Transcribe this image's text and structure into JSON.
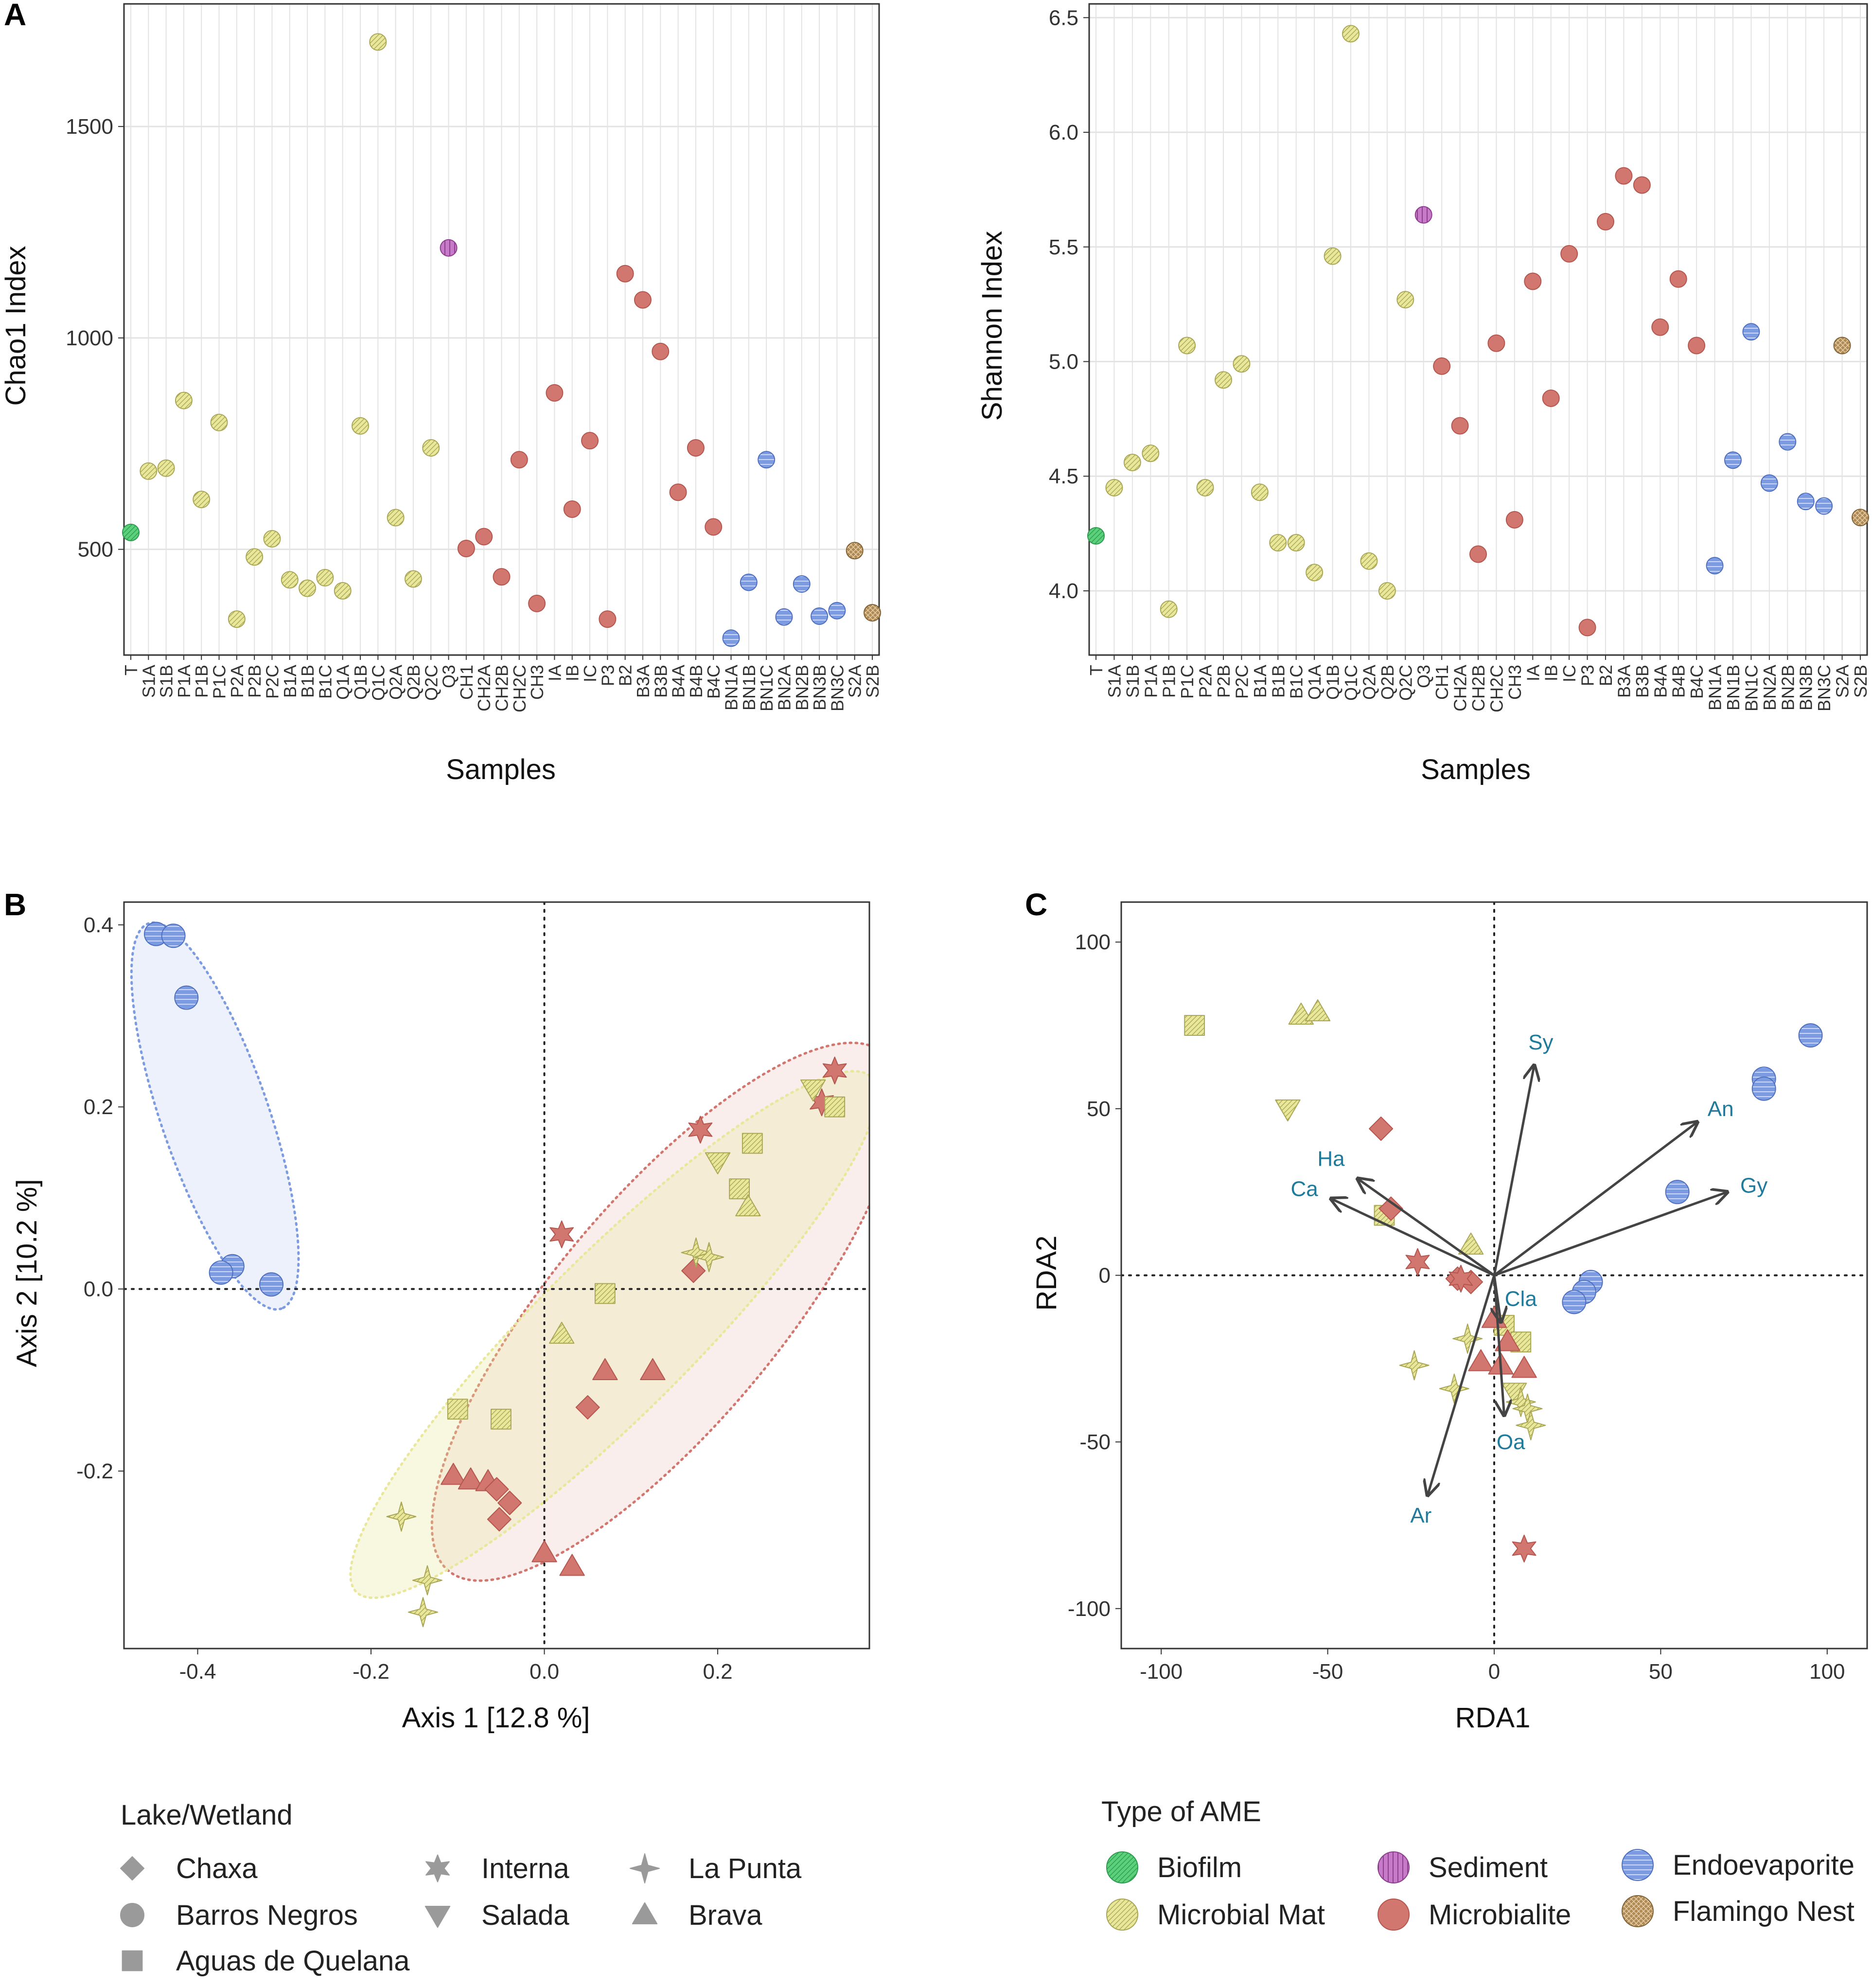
{
  "colors": {
    "Biofilm": "#5bd17c",
    "Microbial Mat": "#e9e79a",
    "Sediment": "#c77ac8",
    "Microbialite": "#d2776f",
    "Endoevaporite": "#7d9be0",
    "Flamingo Nest": "#b08a55",
    "shape_gray": "#9a9a9a",
    "arrow": "#444444",
    "vector_label": "#1f7a9c"
  },
  "labels": {
    "panel_a": "A",
    "panel_b": "B",
    "panel_c": "C"
  },
  "chart_data": [
    {
      "id": "chao1",
      "type": "scatter",
      "title": "",
      "xlabel": "Samples",
      "ylabel": "Chao1 Index",
      "ylim": [
        250,
        1790
      ],
      "yticks": [
        500,
        1000,
        1500
      ],
      "categories": [
        "T",
        "S1A",
        "S1B",
        "P1A",
        "P1B",
        "P1C",
        "P2A",
        "P2B",
        "P2C",
        "B1A",
        "B1B",
        "B1C",
        "Q1A",
        "Q1B",
        "Q1C",
        "Q2A",
        "Q2B",
        "Q2C",
        "Q3",
        "CH1",
        "CH2A",
        "CH2B",
        "CH2C",
        "CH3",
        "IA",
        "IB",
        "IC",
        "P3",
        "B2",
        "B3A",
        "B3B",
        "B4A",
        "B4B",
        "B4C",
        "BN1A",
        "BN1B",
        "BN1C",
        "BN2A",
        "BN2B",
        "BN3B",
        "BN3C",
        "S2A",
        "S2B"
      ],
      "values": [
        540,
        685,
        692,
        852,
        618,
        800,
        335,
        482,
        525,
        428,
        408,
        433,
        402,
        792,
        1700,
        575,
        430,
        740,
        1213,
        502,
        530,
        435,
        712,
        372,
        870,
        595,
        757,
        335,
        1152,
        1090,
        968,
        635,
        740,
        553,
        290,
        422,
        712,
        340,
        418,
        342,
        355,
        497,
        350
      ],
      "types": [
        "Biofilm",
        "Microbial Mat",
        "Microbial Mat",
        "Microbial Mat",
        "Microbial Mat",
        "Microbial Mat",
        "Microbial Mat",
        "Microbial Mat",
        "Microbial Mat",
        "Microbial Mat",
        "Microbial Mat",
        "Microbial Mat",
        "Microbial Mat",
        "Microbial Mat",
        "Microbial Mat",
        "Microbial Mat",
        "Microbial Mat",
        "Microbial Mat",
        "Sediment",
        "Microbialite",
        "Microbialite",
        "Microbialite",
        "Microbialite",
        "Microbialite",
        "Microbialite",
        "Microbialite",
        "Microbialite",
        "Microbialite",
        "Microbialite",
        "Microbialite",
        "Microbialite",
        "Microbialite",
        "Microbialite",
        "Microbialite",
        "Endoevaporite",
        "Endoevaporite",
        "Endoevaporite",
        "Endoevaporite",
        "Endoevaporite",
        "Endoevaporite",
        "Endoevaporite",
        "Flamingo Nest",
        "Flamingo Nest"
      ]
    },
    {
      "id": "shannon",
      "type": "scatter",
      "title": "",
      "xlabel": "Samples",
      "ylabel": "Shannon Index",
      "ylim": [
        3.72,
        6.56
      ],
      "yticks": [
        4.0,
        4.5,
        5.0,
        5.5,
        6.0,
        6.5
      ],
      "ytick_labels": [
        "4.0",
        "4.5",
        "5.0",
        "5.5",
        "6.0",
        "6.5"
      ],
      "categories": [
        "T",
        "S1A",
        "S1B",
        "P1A",
        "P1B",
        "P1C",
        "P2A",
        "P2B",
        "P2C",
        "B1A",
        "B1B",
        "B1C",
        "Q1A",
        "Q1B",
        "Q1C",
        "Q2A",
        "Q2B",
        "Q2C",
        "Q3",
        "CH1",
        "CH2A",
        "CH2B",
        "CH2C",
        "CH3",
        "IA",
        "IB",
        "IC",
        "P3",
        "B2",
        "B3A",
        "B3B",
        "B4A",
        "B4B",
        "B4C",
        "BN1A",
        "BN1B",
        "BN1C",
        "BN2A",
        "BN2B",
        "BN3B",
        "BN3C",
        "S2A",
        "S2B"
      ],
      "values": [
        4.24,
        4.45,
        4.56,
        4.6,
        3.92,
        5.07,
        4.45,
        4.92,
        4.99,
        4.43,
        4.21,
        4.21,
        4.08,
        5.46,
        6.43,
        4.13,
        4.0,
        5.27,
        5.64,
        4.98,
        4.72,
        4.16,
        5.08,
        4.31,
        5.35,
        4.84,
        5.47,
        3.84,
        5.61,
        5.81,
        5.77,
        5.15,
        5.36,
        5.07,
        4.11,
        4.57,
        5.13,
        4.47,
        4.65,
        4.39,
        4.37,
        5.07,
        4.32
      ],
      "types": [
        "Biofilm",
        "Microbial Mat",
        "Microbial Mat",
        "Microbial Mat",
        "Microbial Mat",
        "Microbial Mat",
        "Microbial Mat",
        "Microbial Mat",
        "Microbial Mat",
        "Microbial Mat",
        "Microbial Mat",
        "Microbial Mat",
        "Microbial Mat",
        "Microbial Mat",
        "Microbial Mat",
        "Microbial Mat",
        "Microbial Mat",
        "Microbial Mat",
        "Sediment",
        "Microbialite",
        "Microbialite",
        "Microbialite",
        "Microbialite",
        "Microbialite",
        "Microbialite",
        "Microbialite",
        "Microbialite",
        "Microbialite",
        "Microbialite",
        "Microbialite",
        "Microbialite",
        "Microbialite",
        "Microbialite",
        "Microbialite",
        "Endoevaporite",
        "Endoevaporite",
        "Endoevaporite",
        "Endoevaporite",
        "Endoevaporite",
        "Endoevaporite",
        "Endoevaporite",
        "Flamingo Nest",
        "Flamingo Nest"
      ]
    },
    {
      "id": "pcoa",
      "type": "scatter",
      "title": "",
      "xlabel": "Axis 1 [12.8 %]",
      "ylabel": "Axis 2 [10.2 %]",
      "xlim": [
        -0.485,
        0.375
      ],
      "ylim": [
        -0.395,
        0.425
      ],
      "xticks": [
        -0.4,
        -0.2,
        0.0,
        0.2
      ],
      "xtick_labels": [
        "-0.4",
        "-0.2",
        "0.0",
        "0.2"
      ],
      "yticks": [
        -0.2,
        0.0,
        0.2,
        0.4
      ],
      "ytick_labels": [
        "-0.2",
        "0.0",
        "0.2",
        "0.4"
      ],
      "ellipses": [
        {
          "group": "Endoevaporite",
          "cx": -0.38,
          "cy": 0.19,
          "rx": 0.235,
          "ry": 0.062,
          "angle": -71
        },
        {
          "group": "Microbialite",
          "cx": 0.14,
          "cy": -0.025,
          "rx": 0.39,
          "ry": 0.13,
          "angle": 50
        },
        {
          "group": "Microbial Mat",
          "cx": 0.08,
          "cy": -0.05,
          "rx": 0.42,
          "ry": 0.09,
          "angle": 45
        }
      ],
      "points": [
        {
          "x": -0.448,
          "y": 0.39,
          "lake": "Barros Negros",
          "type": "Endoevaporite"
        },
        {
          "x": -0.428,
          "y": 0.388,
          "lake": "Barros Negros",
          "type": "Endoevaporite"
        },
        {
          "x": -0.413,
          "y": 0.32,
          "lake": "Barros Negros",
          "type": "Endoevaporite"
        },
        {
          "x": -0.36,
          "y": 0.025,
          "lake": "Barros Negros",
          "type": "Endoevaporite"
        },
        {
          "x": -0.373,
          "y": 0.018,
          "lake": "Barros Negros",
          "type": "Endoevaporite"
        },
        {
          "x": -0.315,
          "y": 0.005,
          "lake": "Barros Negros",
          "type": "Endoevaporite"
        },
        {
          "x": 0.02,
          "y": 0.06,
          "lake": "Interna",
          "type": "Microbialite"
        },
        {
          "x": 0.18,
          "y": 0.175,
          "lake": "Interna",
          "type": "Microbialite"
        },
        {
          "x": 0.32,
          "y": 0.205,
          "lake": "Interna",
          "type": "Microbialite"
        },
        {
          "x": 0.335,
          "y": 0.24,
          "lake": "Interna",
          "type": "Microbialite"
        },
        {
          "x": 0.07,
          "y": -0.005,
          "lake": "Aguas de Quelana",
          "type": "Microbial Mat"
        },
        {
          "x": -0.1,
          "y": -0.132,
          "lake": "Aguas de Quelana",
          "type": "Microbial Mat"
        },
        {
          "x": -0.05,
          "y": -0.143,
          "lake": "Aguas de Quelana",
          "type": "Microbial Mat"
        },
        {
          "x": 0.225,
          "y": 0.11,
          "lake": "Aguas de Quelana",
          "type": "Microbial Mat"
        },
        {
          "x": 0.24,
          "y": 0.16,
          "lake": "Aguas de Quelana",
          "type": "Microbial Mat"
        },
        {
          "x": 0.335,
          "y": 0.2,
          "lake": "Aguas de Quelana",
          "type": "Microbial Mat"
        },
        {
          "x": 0.02,
          "y": -0.05,
          "lake": "Brava",
          "type": "Microbial Mat"
        },
        {
          "x": 0.235,
          "y": 0.09,
          "lake": "Brava",
          "type": "Microbial Mat"
        },
        {
          "x": 0.07,
          "y": -0.09,
          "lake": "Brava",
          "type": "Microbialite"
        },
        {
          "x": 0.125,
          "y": -0.09,
          "lake": "Brava",
          "type": "Microbialite"
        },
        {
          "x": -0.105,
          "y": -0.205,
          "lake": "Brava",
          "type": "Microbialite"
        },
        {
          "x": -0.085,
          "y": -0.21,
          "lake": "Brava",
          "type": "Microbialite"
        },
        {
          "x": -0.065,
          "y": -0.212,
          "lake": "Brava",
          "type": "Microbialite"
        },
        {
          "x": 0.0,
          "y": -0.29,
          "lake": "Brava",
          "type": "Microbialite"
        },
        {
          "x": 0.032,
          "y": -0.305,
          "lake": "Brava",
          "type": "Microbialite"
        },
        {
          "x": 0.05,
          "y": -0.13,
          "lake": "Chaxa",
          "type": "Microbialite"
        },
        {
          "x": 0.172,
          "y": 0.02,
          "lake": "Chaxa",
          "type": "Microbialite"
        },
        {
          "x": -0.055,
          "y": -0.22,
          "lake": "Chaxa",
          "type": "Microbialite"
        },
        {
          "x": -0.04,
          "y": -0.235,
          "lake": "Chaxa",
          "type": "Microbialite"
        },
        {
          "x": -0.052,
          "y": -0.253,
          "lake": "Chaxa",
          "type": "Microbialite"
        },
        {
          "x": 0.2,
          "y": 0.14,
          "lake": "Salada",
          "type": "Microbial Mat"
        },
        {
          "x": 0.31,
          "y": 0.22,
          "lake": "Salada",
          "type": "Microbial Mat"
        },
        {
          "x": 0.175,
          "y": 0.04,
          "lake": "La Punta",
          "type": "Microbial Mat"
        },
        {
          "x": 0.19,
          "y": 0.035,
          "lake": "La Punta",
          "type": "Microbial Mat"
        },
        {
          "x": -0.165,
          "y": -0.25,
          "lake": "La Punta",
          "type": "Microbial Mat"
        },
        {
          "x": -0.135,
          "y": -0.32,
          "lake": "La Punta",
          "type": "Microbial Mat"
        },
        {
          "x": -0.14,
          "y": -0.355,
          "lake": "La Punta",
          "type": "Microbial Mat"
        }
      ]
    },
    {
      "id": "rda",
      "type": "scatter",
      "title": "",
      "xlabel": "RDA1",
      "ylabel": "RDA2",
      "xlim": [
        -112,
        112
      ],
      "ylim": [
        -112,
        112
      ],
      "xticks": [
        -100,
        -50,
        0,
        50,
        100
      ],
      "xtick_labels": [
        "-100",
        "-50",
        "0",
        "50",
        "100"
      ],
      "yticks": [
        -100,
        -50,
        0,
        50,
        100
      ],
      "ytick_labels": [
        "-100",
        "-50",
        "0",
        "50",
        "100"
      ],
      "vectors": [
        {
          "label": "Sy",
          "x": 12,
          "y": 63,
          "lx": 14,
          "ly": 70
        },
        {
          "label": "An",
          "x": 61,
          "y": 46,
          "lx": 68,
          "ly": 50
        },
        {
          "label": "Gy",
          "x": 70,
          "y": 25,
          "lx": 78,
          "ly": 27
        },
        {
          "label": "Ha",
          "x": -41,
          "y": 29,
          "lx": -49,
          "ly": 35
        },
        {
          "label": "Ca",
          "x": -49,
          "y": 23,
          "lx": -57,
          "ly": 26
        },
        {
          "label": "Cla",
          "x": 2,
          "y": -14,
          "lx": 8,
          "ly": -7
        },
        {
          "label": "Oa",
          "x": 3,
          "y": -42,
          "lx": 5,
          "ly": -50
        },
        {
          "label": "Ar",
          "x": -20,
          "y": -66,
          "lx": -22,
          "ly": -72
        }
      ],
      "points": [
        {
          "x": 95,
          "y": 72,
          "lake": "Barros Negros",
          "type": "Endoevaporite"
        },
        {
          "x": 81,
          "y": 59,
          "lake": "Barros Negros",
          "type": "Endoevaporite"
        },
        {
          "x": 81,
          "y": 56,
          "lake": "Barros Negros",
          "type": "Endoevaporite"
        },
        {
          "x": 55,
          "y": 25,
          "lake": "Barros Negros",
          "type": "Endoevaporite"
        },
        {
          "x": 29,
          "y": -2,
          "lake": "Barros Negros",
          "type": "Endoevaporite"
        },
        {
          "x": 27,
          "y": -5,
          "lake": "Barros Negros",
          "type": "Endoevaporite"
        },
        {
          "x": 24,
          "y": -8,
          "lake": "Barros Negros",
          "type": "Endoevaporite"
        },
        {
          "x": -90,
          "y": 75,
          "lake": "Aguas de Quelana",
          "type": "Microbial Mat"
        },
        {
          "x": -33,
          "y": 18,
          "lake": "Aguas de Quelana",
          "type": "Microbial Mat"
        },
        {
          "x": 3,
          "y": -15,
          "lake": "Aguas de Quelana",
          "type": "Microbial Mat"
        },
        {
          "x": 8,
          "y": -20,
          "lake": "Aguas de Quelana",
          "type": "Microbial Mat"
        },
        {
          "x": -58,
          "y": 78,
          "lake": "Brava",
          "type": "Microbial Mat"
        },
        {
          "x": -53,
          "y": 79,
          "lake": "Brava",
          "type": "Microbial Mat"
        },
        {
          "x": -7,
          "y": 9,
          "lake": "Brava",
          "type": "Microbial Mat"
        },
        {
          "x": 0,
          "y": -13,
          "lake": "Brava",
          "type": "Microbialite"
        },
        {
          "x": 4,
          "y": -20,
          "lake": "Brava",
          "type": "Microbialite"
        },
        {
          "x": -4,
          "y": -26,
          "lake": "Brava",
          "type": "Microbialite"
        },
        {
          "x": 2,
          "y": -27,
          "lake": "Brava",
          "type": "Microbialite"
        },
        {
          "x": 9,
          "y": -28,
          "lake": "Brava",
          "type": "Microbialite"
        },
        {
          "x": -62,
          "y": 50,
          "lake": "Salada",
          "type": "Microbial Mat"
        },
        {
          "x": 6,
          "y": -35,
          "lake": "Salada",
          "type": "Microbial Mat"
        },
        {
          "x": -34,
          "y": 44,
          "lake": "Chaxa",
          "type": "Microbialite"
        },
        {
          "x": -31,
          "y": 20,
          "lake": "Chaxa",
          "type": "Microbialite"
        },
        {
          "x": -11,
          "y": -1,
          "lake": "Chaxa",
          "type": "Microbialite"
        },
        {
          "x": -7,
          "y": -2,
          "lake": "Chaxa",
          "type": "Microbialite"
        },
        {
          "x": -23,
          "y": 4,
          "lake": "Interna",
          "type": "Microbialite"
        },
        {
          "x": -10,
          "y": -1,
          "lake": "Interna",
          "type": "Microbialite"
        },
        {
          "x": 9,
          "y": -82,
          "lake": "Interna",
          "type": "Microbialite"
        },
        {
          "x": -24,
          "y": -27,
          "lake": "La Punta",
          "type": "Microbial Mat"
        },
        {
          "x": -8,
          "y": -19,
          "lake": "La Punta",
          "type": "Microbial Mat"
        },
        {
          "x": -12,
          "y": -34,
          "lake": "La Punta",
          "type": "Microbial Mat"
        },
        {
          "x": 8,
          "y": -38,
          "lake": "La Punta",
          "type": "Microbial Mat"
        },
        {
          "x": 10,
          "y": -40,
          "lake": "La Punta",
          "type": "Microbial Mat"
        },
        {
          "x": 11,
          "y": -45,
          "lake": "La Punta",
          "type": "Microbial Mat"
        }
      ]
    }
  ],
  "legend_lake": {
    "title": "Lake/Wetland",
    "items": [
      {
        "label": "Chaxa",
        "shape": "diamond"
      },
      {
        "label": "Interna",
        "shape": "star"
      },
      {
        "label": "La Punta",
        "shape": "star4"
      },
      {
        "label": "Barros Negros",
        "shape": "circle"
      },
      {
        "label": "Salada",
        "shape": "triangle-down"
      },
      {
        "label": "Brava",
        "shape": "triangle-up"
      },
      {
        "label": "Aguas de Quelana",
        "shape": "square"
      }
    ]
  },
  "legend_type": {
    "title": "Type of AME",
    "items": [
      {
        "label": "Biofilm"
      },
      {
        "label": "Sediment"
      },
      {
        "label": "Endoevaporite"
      },
      {
        "label": "Microbial Mat"
      },
      {
        "label": "Microbialite"
      },
      {
        "label": "Flamingo Nest"
      }
    ]
  }
}
